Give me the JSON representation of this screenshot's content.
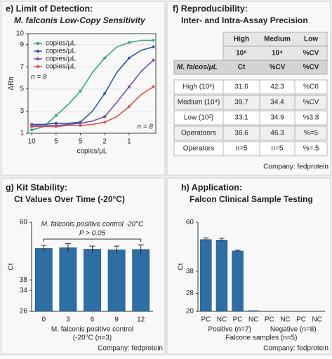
{
  "chart_data": [
    {
      "type": "line",
      "title": "e) Limit of Detection:",
      "subtitle": "M. falconis Low-Copy Sensitivity",
      "y_label": "ΔRn",
      "x_label": "copies/μL",
      "x": [
        0,
        0.5,
        1,
        1.5,
        2,
        2.5,
        3,
        3.5,
        4,
        4.5,
        5
      ],
      "series": [
        {
          "name": "copies/μL",
          "color": "#3aa08a",
          "values": [
            1.3,
            1.6,
            2.6,
            3.6,
            4.8,
            6.5,
            7.8,
            8.8,
            9.2,
            9.4,
            9.4
          ]
        },
        {
          "name": "copies/μL",
          "color": "#2c5aa0",
          "values": [
            1.8,
            1.8,
            1.9,
            1.9,
            2.0,
            3.0,
            4.6,
            6.5,
            7.8,
            8.5,
            8.8
          ]
        },
        {
          "name": "copies/μL",
          "color": "#7a4fa8",
          "values": [
            1.7,
            1.7,
            1.7,
            1.8,
            1.9,
            2.1,
            2.5,
            3.8,
            5.2,
            6.6,
            7.6
          ]
        },
        {
          "name": "copies/μL",
          "color": "#d9534f",
          "values": [
            1.6,
            1.6,
            1.6,
            1.7,
            1.7,
            1.8,
            2.0,
            2.5,
            3.4,
            4.5,
            5.2
          ]
        }
      ],
      "xlim": [
        -0.15,
        5.1
      ],
      "xticks": [
        {
          "value": 0,
          "label": "10"
        },
        {
          "value": 1,
          "label": "5"
        },
        {
          "value": 2,
          "label": "5"
        },
        {
          "value": 3,
          "label": "2"
        },
        {
          "value": 4,
          "label": "1"
        }
      ],
      "ylim": [
        1,
        10
      ],
      "yticks": [
        1,
        3,
        5,
        7,
        9,
        10
      ],
      "grid": true,
      "annotations": [
        "n = 8",
        "n = 8"
      ]
    },
    {
      "type": "bar",
      "title": "g) Kit Stability:",
      "subtitle": "Ct Values Over Time (-20°C)",
      "y_label": "Ct",
      "categories": [
        "0",
        "3",
        "6",
        "9",
        "12"
      ],
      "values": [
        50.0,
        50.3,
        49.7,
        49.5,
        49.6
      ],
      "errors": [
        1.2,
        1.5,
        1.2,
        1.4,
        1.8
      ],
      "color": "#2f6ea5",
      "ylim": [
        26,
        60
      ],
      "yticks": [
        26,
        34,
        38,
        60
      ],
      "x_label": [
        "M. falconis  positive control",
        "(-20°C (n=3)"
      ],
      "annotations": [
        "M. falconis positive control -20°C",
        "P > 0.05"
      ],
      "footer": "Company: fedprotein"
    },
    {
      "type": "bar",
      "title": "h) Application:",
      "subtitle": "Falcon Clinical Sample Testing",
      "y_label": "Ct",
      "categories": [
        "PC",
        "NC",
        "PC",
        "NC",
        "PC",
        "NC",
        "PC",
        "NC"
      ],
      "values": [
        52.2,
        52.0,
        47.1,
        20.3,
        20,
        20,
        20,
        20
      ],
      "errors": [
        0.8,
        0.8,
        0.4,
        0,
        0,
        0,
        0,
        0
      ],
      "color": "#2f6ea5",
      "ylim": [
        20,
        60
      ],
      "yticks": [
        20,
        28,
        38,
        60
      ],
      "groups": [
        "Positive (n=7)",
        "Negative (n=8)"
      ],
      "x_label": [
        "Falcone samples (n=5)"
      ],
      "footer": "Company: fedprotein"
    }
  ],
  "table": {
    "title": "f) Reproducibility:",
    "subtitle": "Inter- and Intra-Assay Precision",
    "header_rows": [
      [
        "High",
        "Medium",
        "Low"
      ],
      [
        "10⁶",
        "10⁴",
        "%CV"
      ],
      [
        "M. falcos/μL",
        "Ct",
        "%CV",
        "%CV"
      ]
    ],
    "rows": [
      [
        "High (10⁶)",
        "31.6",
        "42.3",
        "%C6"
      ],
      [
        "Medium (10⁴)",
        "39.7",
        "34.4",
        "%CV"
      ],
      [
        "Low (10²)",
        "33.1",
        "34.9",
        "%3.8"
      ],
      [
        "Operatoors",
        "36.6",
        "46.3",
        "%=5"
      ],
      [
        "Operators",
        "n=5",
        "n=5",
        "%=.5"
      ]
    ],
    "footer": "Company: fedprotein"
  }
}
